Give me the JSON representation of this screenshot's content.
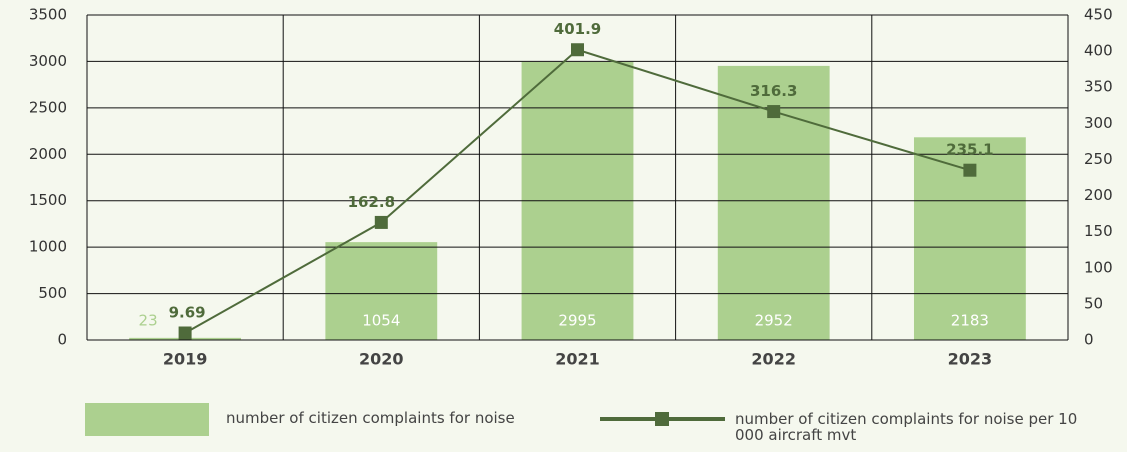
{
  "chart_data": {
    "type": "bar",
    "categories": [
      "2019",
      "2020",
      "2021",
      "2022",
      "2023"
    ],
    "series": [
      {
        "name": "number of citizen complaints for noise",
        "type": "bar",
        "color": "#acd08f",
        "values": [
          23,
          1054,
          2995,
          2952,
          2183
        ]
      },
      {
        "name": "number of citizen complaints for noise per 10 000 aircraft mvt",
        "type": "line",
        "axis": "y2",
        "color": "#4f6b3b",
        "values": [
          9.69,
          162.8,
          401.9,
          316.3,
          235.1
        ]
      }
    ],
    "ylim": [
      0,
      3500
    ],
    "yticks": [
      0,
      500,
      1000,
      1500,
      2000,
      2500,
      3000,
      3500
    ],
    "y2lim": [
      0,
      450
    ],
    "y2ticks": [
      0,
      50,
      100,
      150,
      200,
      250,
      300,
      350,
      400,
      450
    ],
    "grid": true,
    "legend": "bottom"
  }
}
